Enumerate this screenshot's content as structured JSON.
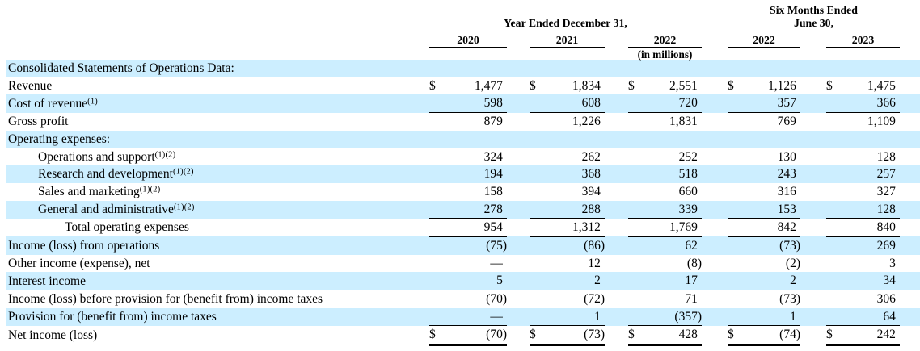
{
  "header": {
    "group_year": {
      "title": "Year Ended December 31,",
      "cols": [
        "2020",
        "2021",
        "2022"
      ]
    },
    "group_six_months": {
      "title_line1": "Six Months Ended",
      "title_line2": "June 30,",
      "cols": [
        "2022",
        "2023"
      ]
    },
    "units_note": "(in millions)"
  },
  "colors": {
    "row_highlight": "#CCEEFF",
    "rule_color": "#000000"
  },
  "table": {
    "currency_symbol": "$",
    "rows": [
      {
        "label": "Consolidated Statements of Operations Data:",
        "sup": "",
        "indent": 0,
        "shaded": true,
        "dollar": false,
        "rule": "none",
        "values": null
      },
      {
        "label": "Revenue",
        "sup": "",
        "indent": 0,
        "shaded": false,
        "dollar": true,
        "rule": "none",
        "values": [
          "1,477",
          "1,834",
          "2,551",
          "1,126",
          "1,475"
        ]
      },
      {
        "label": "Cost of revenue",
        "sup": "(1)",
        "indent": 0,
        "shaded": true,
        "dollar": false,
        "rule": "single",
        "values": [
          "598",
          "608",
          "720",
          "357",
          "366"
        ]
      },
      {
        "label": "Gross profit",
        "sup": "",
        "indent": 0,
        "shaded": false,
        "dollar": false,
        "rule": "none",
        "values": [
          "879",
          "1,226",
          "1,831",
          "769",
          "1,109"
        ]
      },
      {
        "label": "Operating expenses:",
        "sup": "",
        "indent": 0,
        "shaded": true,
        "dollar": false,
        "rule": "none",
        "values": null
      },
      {
        "label": "Operations and support",
        "sup": "(1)(2)",
        "indent": 1,
        "shaded": false,
        "dollar": false,
        "rule": "none",
        "values": [
          "324",
          "262",
          "252",
          "130",
          "128"
        ]
      },
      {
        "label": "Research and development",
        "sup": "(1)(2)",
        "indent": 1,
        "shaded": true,
        "dollar": false,
        "rule": "none",
        "values": [
          "194",
          "368",
          "518",
          "243",
          "257"
        ]
      },
      {
        "label": "Sales and marketing",
        "sup": "(1)(2)",
        "indent": 1,
        "shaded": false,
        "dollar": false,
        "rule": "none",
        "values": [
          "158",
          "394",
          "660",
          "316",
          "327"
        ]
      },
      {
        "label": "General and administrative",
        "sup": "(1)(2)",
        "indent": 1,
        "shaded": true,
        "dollar": false,
        "rule": "single",
        "values": [
          "278",
          "288",
          "339",
          "153",
          "128"
        ]
      },
      {
        "label": "Total operating expenses",
        "sup": "",
        "indent": 2,
        "shaded": false,
        "dollar": false,
        "rule": "single",
        "values": [
          "954",
          "1,312",
          "1,769",
          "842",
          "840"
        ]
      },
      {
        "label": "Income (loss) from operations",
        "sup": "",
        "indent": 0,
        "shaded": true,
        "dollar": false,
        "rule": "none",
        "values": [
          "(75)",
          "(86)",
          "62",
          "(73)",
          "269"
        ]
      },
      {
        "label": "Other income (expense), net",
        "sup": "",
        "indent": 0,
        "shaded": false,
        "dollar": false,
        "rule": "none",
        "values": [
          "—",
          "12",
          "(8)",
          "(2)",
          "3"
        ]
      },
      {
        "label": "Interest income",
        "sup": "",
        "indent": 0,
        "shaded": true,
        "dollar": false,
        "rule": "single",
        "values": [
          "5",
          "2",
          "17",
          "2",
          "34"
        ]
      },
      {
        "label": "Income (loss) before provision for (benefit from) income taxes",
        "sup": "",
        "indent": 0,
        "shaded": false,
        "dollar": false,
        "rule": "none",
        "values": [
          "(70)",
          "(72)",
          "71",
          "(73)",
          "306"
        ]
      },
      {
        "label": "Provision for (benefit from) income taxes",
        "sup": "",
        "indent": 0,
        "shaded": true,
        "dollar": false,
        "rule": "single",
        "values": [
          "—",
          "1",
          "(357)",
          "1",
          "64"
        ]
      },
      {
        "label": "Net income (loss)",
        "sup": "",
        "indent": 0,
        "shaded": false,
        "dollar": true,
        "rule": "double",
        "values": [
          "(70)",
          "(73)",
          "428",
          "(74)",
          "242"
        ]
      }
    ]
  }
}
